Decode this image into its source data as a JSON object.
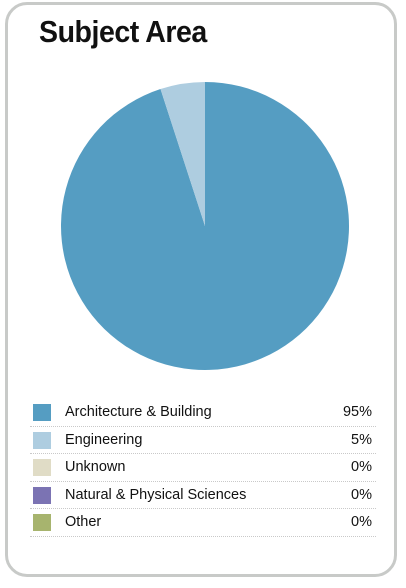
{
  "chart_data": {
    "type": "pie",
    "title": "Subject Area",
    "categories": [
      "Architecture & Building",
      "Engineering",
      "Unknown",
      "Natural & Physical Sciences",
      "Other"
    ],
    "values": [
      95,
      5,
      0,
      0,
      0
    ],
    "value_labels": [
      "95%",
      "5%",
      "0%",
      "0%",
      "0%"
    ],
    "colors": [
      "#559dc2",
      "#aecde0",
      "#e0dcc6",
      "#7b73b3",
      "#a7b46e"
    ],
    "legend_position": "bottom"
  }
}
